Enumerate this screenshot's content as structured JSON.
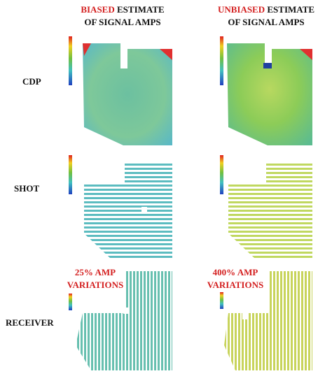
{
  "columns": [
    {
      "highlight": "BIASED",
      "rest": "ESTIMATE",
      "line2": "OF SIGNAL AMPS"
    },
    {
      "highlight": "UNBIASED",
      "rest": "ESTIMATE",
      "line2": "OF SIGNAL AMPS"
    }
  ],
  "rows": [
    "CDP",
    "SHOT",
    "RECEIVER"
  ],
  "annotations": [
    {
      "line1": "25% AMP",
      "line2": "VARIATIONS"
    },
    {
      "line1": "400% AMP",
      "line2": "VARIATIONS"
    }
  ]
}
